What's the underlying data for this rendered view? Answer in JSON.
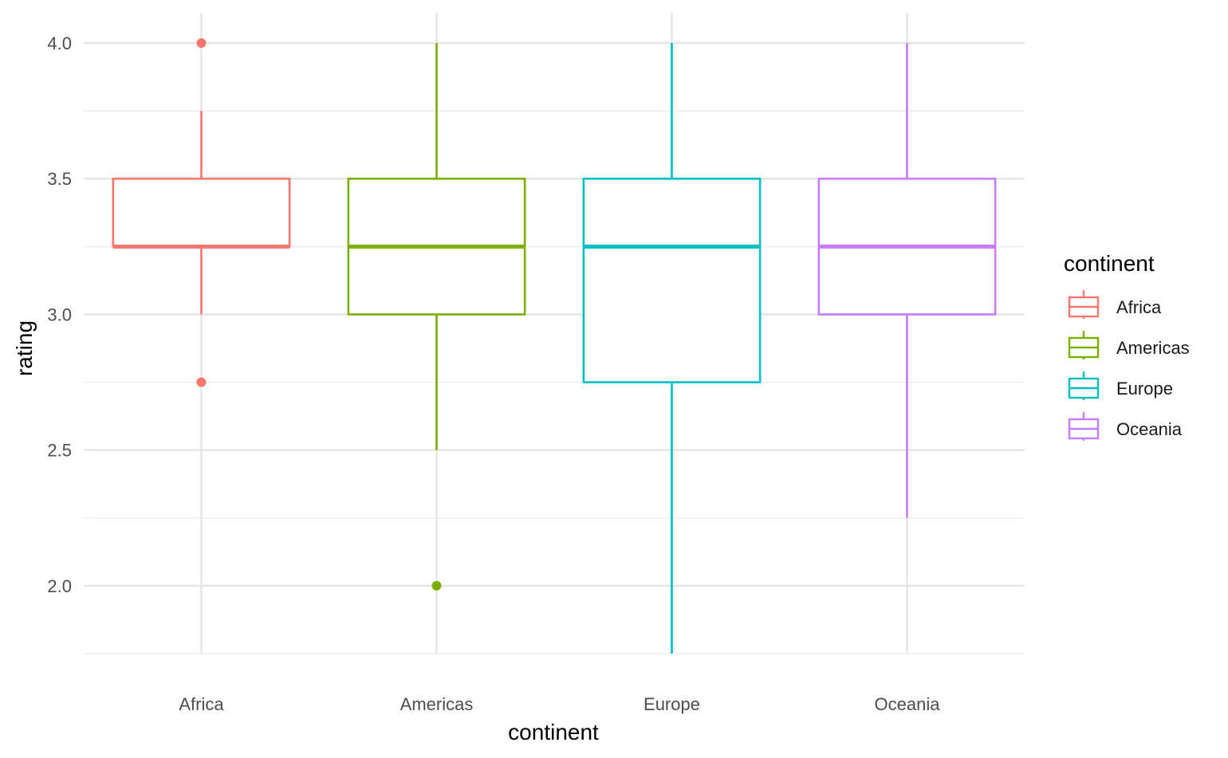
{
  "chart_data": {
    "type": "boxplot",
    "xlabel": "continent",
    "ylabel": "rating",
    "ylim": [
      1.75,
      4.0
    ],
    "y_ticks": [
      "2.0",
      "2.5",
      "3.0",
      "3.5",
      "4.0"
    ],
    "y_tick_values": [
      2.0,
      2.5,
      3.0,
      3.5,
      4.0
    ],
    "grid": true,
    "legend": {
      "title": "continent",
      "position": "right"
    },
    "categories": [
      "Africa",
      "Americas",
      "Europe",
      "Oceania"
    ],
    "series": [
      {
        "name": "Africa",
        "color": "#F8766D",
        "whisker_low": 3.0,
        "q1": 3.25,
        "median": 3.25,
        "q3": 3.5,
        "whisker_high": 3.75,
        "outliers": [
          4.0,
          2.75
        ]
      },
      {
        "name": "Americas",
        "color": "#7CAE00",
        "whisker_low": 2.5,
        "q1": 3.0,
        "median": 3.25,
        "q3": 3.5,
        "whisker_high": 4.0,
        "outliers": [
          2.0
        ]
      },
      {
        "name": "Europe",
        "color": "#00BFC4",
        "whisker_low": 1.75,
        "q1": 2.75,
        "median": 3.25,
        "q3": 3.5,
        "whisker_high": 4.0,
        "outliers": []
      },
      {
        "name": "Oceania",
        "color": "#C77CFF",
        "whisker_low": 2.25,
        "q1": 3.0,
        "median": 3.25,
        "q3": 3.5,
        "whisker_high": 4.0,
        "outliers": []
      }
    ]
  }
}
